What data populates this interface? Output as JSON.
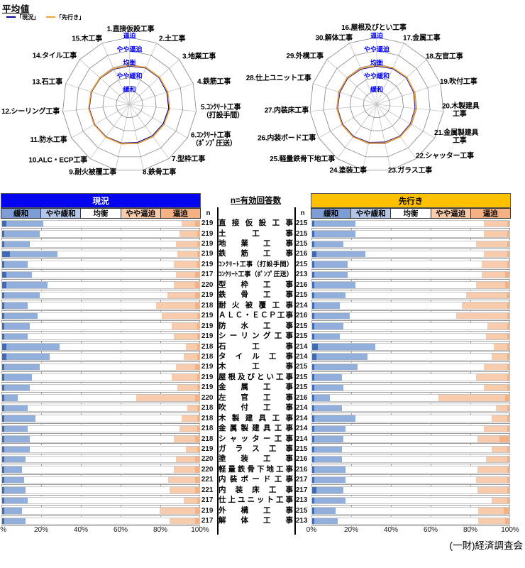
{
  "title": "平均値",
  "legend": {
    "current_label": "「現況」",
    "outlook_label": "「先行き」",
    "current_color": "#0000A0",
    "outlook_color": "#EFA335"
  },
  "radar_style": {
    "ring_label_color": "#0000FF",
    "grid_color": "#858585",
    "spoke_color": "#C4C4C4"
  },
  "table": {
    "center_title": "n=有効回答数",
    "n_header": "n",
    "current_banner": "現況",
    "outlook_banner": "先行き",
    "banner_current_bg": "#0404EE",
    "banner_current_fg": "#FFFFFF",
    "banner_outlook_bg": "#FFC000",
    "banner_outlook_fg": "#000000",
    "category_colors": [
      "#7E9DD5",
      "#B3C6E8",
      "#FFFFFF",
      "#F8CBAD",
      "#F4B183"
    ],
    "segment_colors": [
      "#3F6BB4",
      "#92AFDC",
      "#FFFFFF",
      "#F8CBAD",
      "#F4B183"
    ],
    "axis_ticks": [
      "0%",
      "20%",
      "40%",
      "60%",
      "80%",
      "100%"
    ]
  },
  "footer": {
    "credit": "(一財)経済調査会"
  },
  "chart_data": [
    {
      "type": "radar",
      "name": "radar-left",
      "title": "平均値（1～15）",
      "rings": [
        "緩和",
        "やや緩和",
        "均衡",
        "やや逼迫",
        "逼迫"
      ],
      "range": [
        0,
        5
      ],
      "axes": [
        "1.直接仮設工事",
        "2.土工事",
        "3.地業工事",
        "4.鉄筋工事",
        "5.ｺﾝｸﾘｰﾄ工事\n（打設手間）",
        "6.ｺﾝｸﾘｰﾄ工事\n（ﾎﾟﾝﾌﾟ圧送）",
        "7.型枠工事",
        "8.鉄骨工事",
        "9.耐火被覆工事",
        "10.ALC・ECP工事",
        "11.防水工事",
        "12.シーリング工事",
        "13.石工事",
        "14.タイル工事",
        "15.木工事"
      ],
      "series": [
        {
          "name": "「現況」",
          "color": "#0000A0",
          "values": [
            2.85,
            2.97,
            2.97,
            2.93,
            2.95,
            2.9,
            2.9,
            2.9,
            2.95,
            2.98,
            3.0,
            3.02,
            2.98,
            2.93,
            2.88
          ]
        },
        {
          "name": "「先行き」",
          "color": "#EFA335",
          "values": [
            2.9,
            3.02,
            3.02,
            3.0,
            3.02,
            2.97,
            2.96,
            2.97,
            3.0,
            3.02,
            3.04,
            3.06,
            3.02,
            2.97,
            2.92
          ]
        }
      ]
    },
    {
      "type": "radar",
      "name": "radar-right",
      "title": "平均値（16～30）",
      "rings": [
        "緩和",
        "やや緩和",
        "均衡",
        "やや逼迫",
        "逼迫"
      ],
      "range": [
        0,
        5
      ],
      "axes": [
        "16.屋根及びとい工事",
        "17.金属工事",
        "18.左官工事",
        "19.吹付工事",
        "20.木製建具\n工事",
        "21.金属製建具\n工事",
        "22.シャッター工事",
        "23.ガラス工事",
        "24.塗装工事",
        "25.軽量鉄骨下地工事",
        "26.内装ボード工事",
        "27.内装床工事",
        "28.仕上ユニット工事",
        "29.外構工事",
        "30.解体工事"
      ],
      "series": [
        {
          "name": "「現況」",
          "color": "#0000A0",
          "values": [
            2.85,
            2.92,
            2.97,
            2.9,
            2.88,
            2.9,
            2.93,
            2.88,
            2.9,
            2.95,
            2.95,
            2.94,
            2.9,
            2.92,
            2.88
          ]
        },
        {
          "name": "「先行き」",
          "color": "#EFA335",
          "values": [
            2.9,
            2.97,
            3.02,
            2.95,
            2.93,
            2.95,
            2.98,
            2.93,
            2.95,
            3.0,
            3.0,
            2.99,
            2.95,
            2.97,
            2.93
          ]
        }
      ]
    },
    {
      "type": "bar",
      "name": "stacked-bar-current",
      "title": "現況",
      "stacked": true,
      "unit": "%",
      "legend_position": "top",
      "xlim": [
        0,
        100
      ],
      "x_ticks": [
        "0%",
        "20%",
        "40%",
        "60%",
        "80%",
        "100%"
      ],
      "series_names": [
        "緩和",
        "やや緩和",
        "均衡",
        "やや逼迫",
        "逼迫"
      ],
      "categories": [
        "直接仮設工事",
        "土工事",
        "地業工事",
        "鉄筋工事",
        "ｺﾝｸﾘｰﾄ工事（打設手間）",
        "ｺﾝｸﾘｰﾄ工事（ﾎﾟﾝﾌﾟ圧送）",
        "型枠工事",
        "鉄骨工事",
        "耐火被覆工事",
        "ＡＬＣ・ＥＣＰ工事",
        "防水工事",
        "シーリング工事",
        "石工事",
        "タイル工事",
        "木工事",
        "屋根及びとい工事",
        "金属工事",
        "左官工事",
        "吹付工事",
        "木製建具工事",
        "金属製建具工事",
        "シャッター工事",
        "ガラス工事",
        "塗装工事",
        "軽量鉄骨下地工事",
        "内装ボード工事",
        "内装床工事",
        "仕上ユニット工事",
        "外構工事",
        "解体工事"
      ],
      "n": [
        219,
        219,
        219,
        219,
        219,
        217,
        220,
        219,
        218,
        219,
        219,
        219,
        218,
        218,
        219,
        219,
        219,
        220,
        218,
        218,
        218,
        218,
        219,
        220,
        220,
        221,
        221,
        217,
        219,
        217
      ],
      "values": [
        [
          2,
          19,
          70,
          7,
          2
        ],
        [
          1,
          18,
          71,
          9,
          1
        ],
        [
          1,
          13,
          74,
          11,
          1
        ],
        [
          4,
          24,
          61,
          10,
          1
        ],
        [
          1,
          12,
          74,
          12,
          1
        ],
        [
          2,
          13,
          73,
          10,
          2
        ],
        [
          2,
          21,
          64,
          11,
          2
        ],
        [
          1,
          18,
          65,
          14,
          2
        ],
        [
          1,
          12,
          65,
          20,
          2
        ],
        [
          1,
          17,
          63,
          18,
          1
        ],
        [
          1,
          13,
          72,
          13,
          1
        ],
        [
          1,
          12,
          74,
          12,
          1
        ],
        [
          2,
          27,
          64,
          6,
          1
        ],
        [
          2,
          22,
          68,
          7,
          1
        ],
        [
          1,
          18,
          69,
          10,
          2
        ],
        [
          1,
          14,
          71,
          13,
          1
        ],
        [
          1,
          13,
          75,
          10,
          1
        ],
        [
          1,
          7,
          60,
          30,
          2
        ],
        [
          1,
          12,
          81,
          5,
          1
        ],
        [
          1,
          16,
          74,
          8,
          1
        ],
        [
          1,
          12,
          77,
          9,
          1
        ],
        [
          1,
          13,
          73,
          11,
          2
        ],
        [
          1,
          13,
          79,
          6,
          1
        ],
        [
          1,
          11,
          76,
          10,
          2
        ],
        [
          1,
          9,
          77,
          11,
          2
        ],
        [
          1,
          10,
          73,
          14,
          2
        ],
        [
          1,
          11,
          73,
          13,
          2
        ],
        [
          1,
          12,
          79,
          7,
          1
        ],
        [
          1,
          9,
          70,
          18,
          2
        ],
        [
          1,
          11,
          73,
          13,
          2
        ]
      ]
    },
    {
      "type": "bar",
      "name": "stacked-bar-outlook",
      "title": "先行き",
      "stacked": true,
      "unit": "%",
      "legend_position": "top",
      "xlim": [
        0,
        100
      ],
      "x_ticks": [
        "0%",
        "20%",
        "40%",
        "60%",
        "80%",
        "100%"
      ],
      "series_names": [
        "緩和",
        "やや緩和",
        "均衡",
        "やや逼迫",
        "逼迫"
      ],
      "categories": [
        "直接仮設工事",
        "土工事",
        "地業工事",
        "鉄筋工事",
        "ｺﾝｸﾘｰﾄ工事（打設手間）",
        "ｺﾝｸﾘｰﾄ工事（ﾎﾟﾝﾌﾟ圧送）",
        "型枠工事",
        "鉄骨工事",
        "耐火被覆工事",
        "ＡＬＣ・ＥＣＰ工事",
        "防水工事",
        "シーリング工事",
        "石工事",
        "タイル工事",
        "木工事",
        "屋根及びとい工事",
        "金属工事",
        "左官工事",
        "吹付工事",
        "木製建具工事",
        "金属製建具工事",
        "シャッター工事",
        "ガラス工事",
        "塗装工事",
        "軽量鉄骨下地工事",
        "内装ボード工事",
        "内装床工事",
        "仕上ユニット工事",
        "外構工事",
        "解体工事"
      ],
      "n": [
        215,
        215,
        215,
        216,
        215,
        213,
        216,
        215,
        214,
        216,
        215,
        215,
        214,
        214,
        215,
        215,
        215,
        216,
        214,
        214,
        214,
        214,
        215,
        216,
        216,
        217,
        217,
        213,
        215,
        213
      ],
      "values": [
        [
          1,
          21,
          65,
          12,
          1
        ],
        [
          1,
          21,
          65,
          12,
          1
        ],
        [
          1,
          15,
          67,
          16,
          1
        ],
        [
          2,
          25,
          60,
          12,
          1
        ],
        [
          1,
          17,
          68,
          13,
          1
        ],
        [
          1,
          17,
          68,
          12,
          2
        ],
        [
          1,
          21,
          61,
          15,
          2
        ],
        [
          1,
          16,
          61,
          21,
          1
        ],
        [
          1,
          13,
          62,
          23,
          1
        ],
        [
          1,
          18,
          54,
          26,
          1
        ],
        [
          1,
          15,
          73,
          10,
          1
        ],
        [
          1,
          13,
          74,
          11,
          1
        ],
        [
          3,
          29,
          60,
          7,
          1
        ],
        [
          2,
          26,
          63,
          8,
          1
        ],
        [
          1,
          22,
          64,
          12,
          1
        ],
        [
          1,
          14,
          68,
          16,
          1
        ],
        [
          1,
          15,
          71,
          12,
          1
        ],
        [
          1,
          8,
          55,
          34,
          2
        ],
        [
          1,
          14,
          78,
          6,
          1
        ],
        [
          1,
          21,
          69,
          8,
          1
        ],
        [
          1,
          16,
          70,
          12,
          1
        ],
        [
          1,
          15,
          68,
          11,
          5
        ],
        [
          1,
          14,
          76,
          8,
          1
        ],
        [
          1,
          14,
          73,
          11,
          1
        ],
        [
          1,
          16,
          67,
          15,
          1
        ],
        [
          1,
          16,
          66,
          16,
          1
        ],
        [
          2,
          14,
          68,
          15,
          1
        ],
        [
          1,
          16,
          74,
          8,
          1
        ],
        [
          1,
          11,
          72,
          13,
          3
        ],
        [
          1,
          12,
          71,
          14,
          2
        ]
      ]
    }
  ]
}
